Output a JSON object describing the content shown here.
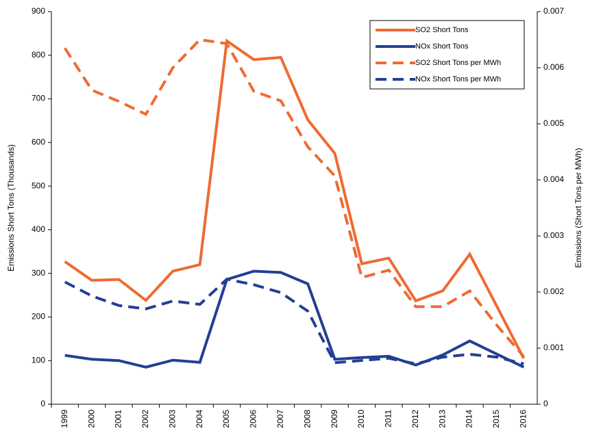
{
  "chart_data": {
    "type": "line",
    "y_label": "Emissions Short Tons (Thousands)",
    "y2_label": "Emissions (Short Tons per MWh)",
    "categories": [
      "1999",
      "2000",
      "2001",
      "2002",
      "2003",
      "2004",
      "2005",
      "2006",
      "2007",
      "2008",
      "2009",
      "2010",
      "2011",
      "2012",
      "2013",
      "2014",
      "2015",
      "2016"
    ],
    "series": [
      {
        "name": "SO2 Short Tons",
        "color": "#ef6a32",
        "dashed": false,
        "axis": "y",
        "values": [
          327,
          284,
          286,
          238,
          305,
          320,
          833,
          790,
          795,
          652,
          575,
          322,
          335,
          237,
          260,
          344,
          225,
          105
        ]
      },
      {
        "name": "NOx Short Tons",
        "color": "#233f94",
        "dashed": false,
        "axis": "y",
        "values": [
          112,
          103,
          100,
          85,
          101,
          96,
          286,
          305,
          302,
          276,
          103,
          107,
          110,
          90,
          113,
          145,
          115,
          85
        ]
      },
      {
        "name": "SO2 Short Tons per MWh",
        "color": "#ef6a32",
        "dashed": true,
        "axis": "y2",
        "values": [
          0.00635,
          0.0056,
          0.0054,
          0.00517,
          0.006,
          0.0065,
          0.00643,
          0.00558,
          0.00541,
          0.00459,
          0.00407,
          0.00226,
          0.00239,
          0.00174,
          0.00174,
          0.00202,
          0.00141,
          0.00085
        ]
      },
      {
        "name": "NOx Short Tons per MWh",
        "color": "#233f94",
        "dashed": true,
        "axis": "y2",
        "values": [
          0.00218,
          0.00193,
          0.00176,
          0.0017,
          0.00184,
          0.00178,
          0.00223,
          0.00213,
          0.00199,
          0.00166,
          0.00074,
          0.00078,
          0.00082,
          0.00072,
          0.00084,
          0.00089,
          0.00084,
          0.00072
        ]
      }
    ],
    "ylim": [
      0,
      900
    ],
    "yticks": [
      0,
      100,
      200,
      300,
      400,
      500,
      600,
      700,
      800,
      900
    ],
    "y2lim": [
      0,
      0.007
    ],
    "y2ticks": [
      0,
      0.001,
      0.002,
      0.003,
      0.004,
      0.005,
      0.006,
      0.007
    ],
    "grid": false
  }
}
